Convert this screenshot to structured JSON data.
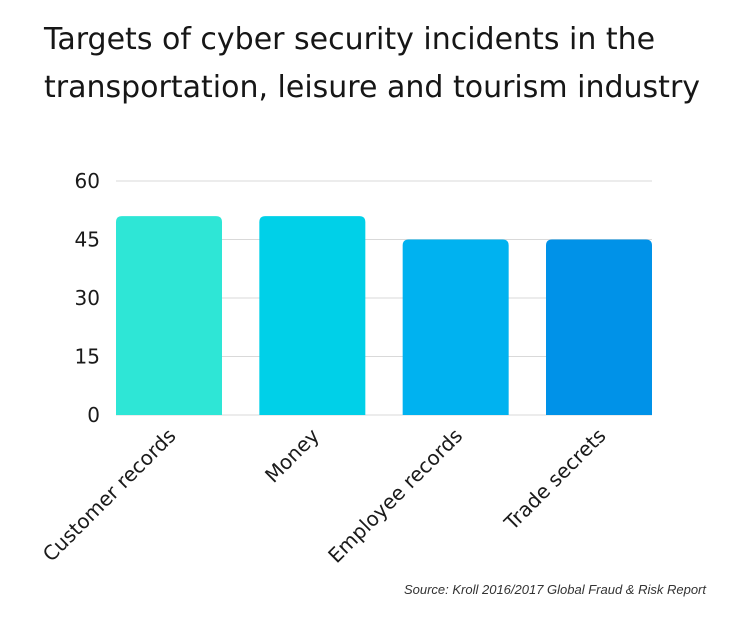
{
  "title_line1": "Targets of cyber security incidents in the",
  "title_line2": "transportation, leisure and tourism industry",
  "source": "Source: Kroll 2016/2017 Global Fraud & Risk Report",
  "chart_data": {
    "type": "bar",
    "title": "Targets of cyber security incidents in the transportation, leisure and tourism industry",
    "categories": [
      "Customer records",
      "Money",
      "Employee records",
      "Trade secrets"
    ],
    "values": [
      51,
      51,
      45,
      45
    ],
    "colors": [
      "#2EE6D6",
      "#00D0E8",
      "#00B2F0",
      "#0092E8"
    ],
    "yticks": [
      0,
      15,
      30,
      45,
      60
    ],
    "ylim": [
      0,
      60
    ],
    "xlabel": "",
    "ylabel": "",
    "grid": true,
    "legend": "none"
  }
}
